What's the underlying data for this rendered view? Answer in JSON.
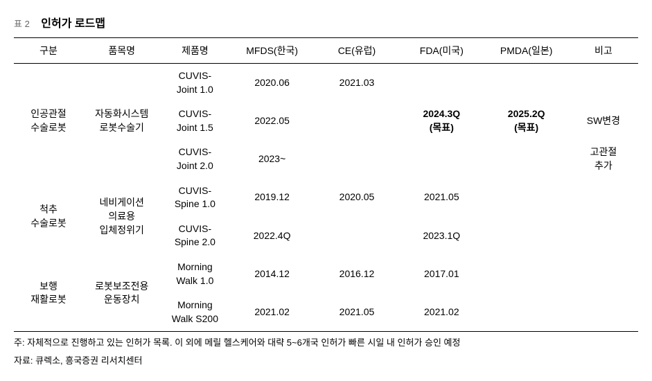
{
  "table_label": "표 2",
  "table_title": "인허가 로드맵",
  "columns": [
    "구분",
    "품목명",
    "제품명",
    "MFDS(한국)",
    "CE(유럽)",
    "FDA(미국)",
    "PMDA(일본)",
    "비고"
  ],
  "rows": [
    {
      "category": "인공관절\n수술로봇",
      "category_rowspan": 3,
      "item": "자동화시스템\n로봇수술기",
      "item_rowspan": 3,
      "product": "CUVIS-\nJoint 1.0",
      "mfds": "2020.06",
      "ce": "2021.03",
      "fda": "",
      "fda_bold": false,
      "pmda": "",
      "pmda_bold": false,
      "note": ""
    },
    {
      "category": "",
      "category_rowspan": 0,
      "item": "",
      "item_rowspan": 0,
      "product": "CUVIS-\nJoint 1.5",
      "mfds": "2022.05",
      "ce": "",
      "fda": "2024.3Q\n(목표)",
      "fda_bold": true,
      "pmda": "2025.2Q\n(목표)",
      "pmda_bold": true,
      "note": "SW변경"
    },
    {
      "category": "",
      "category_rowspan": 0,
      "item": "",
      "item_rowspan": 0,
      "product": "CUVIS-\nJoint 2.0",
      "mfds": "2023~",
      "ce": "",
      "fda": "",
      "fda_bold": false,
      "pmda": "",
      "pmda_bold": false,
      "note": "고관절\n추가"
    },
    {
      "category": "척추\n수술로봇",
      "category_rowspan": 2,
      "item": "네비게이션\n의료용\n입체정위기",
      "item_rowspan": 2,
      "product": "CUVIS-\nSpine 1.0",
      "mfds": "2019.12",
      "ce": "2020.05",
      "fda": "2021.05",
      "fda_bold": false,
      "pmda": "",
      "pmda_bold": false,
      "note": ""
    },
    {
      "category": "",
      "category_rowspan": 0,
      "item": "",
      "item_rowspan": 0,
      "product": "CUVIS-\nSpine 2.0",
      "mfds": "2022.4Q",
      "ce": "",
      "fda": "2023.1Q",
      "fda_bold": false,
      "pmda": "",
      "pmda_bold": false,
      "note": ""
    },
    {
      "category": "보행\n재활로봇",
      "category_rowspan": 2,
      "item": "로봇보조전용\n운동장치",
      "item_rowspan": 2,
      "product": "Morning\nWalk 1.0",
      "mfds": "2014.12",
      "ce": "2016.12",
      "fda": "2017.01",
      "fda_bold": false,
      "pmda": "",
      "pmda_bold": false,
      "note": ""
    },
    {
      "category": "",
      "category_rowspan": 0,
      "item": "",
      "item_rowspan": 0,
      "product": "Morning\nWalk S200",
      "mfds": "2021.02",
      "ce": "2021.05",
      "fda": "2021.02",
      "fda_bold": false,
      "pmda": "",
      "pmda_bold": false,
      "note": ""
    }
  ],
  "footnote1": "주: 자체적으로 진행하고 있는 인허가 목록. 이 외에 메릴 헬스케어와 대략 5~6개국 인허가 빠른 시일 내 인허가 승인 예정",
  "footnote2": "자료: 큐렉소, 흥국증권 리서치센터",
  "styles": {
    "background_color": "#ffffff",
    "text_color": "#000000",
    "label_color": "#666666",
    "border_color": "#000000",
    "title_fontsize": 16,
    "header_fontsize": 14,
    "cell_fontsize": 14,
    "footnote_fontsize": 13
  }
}
